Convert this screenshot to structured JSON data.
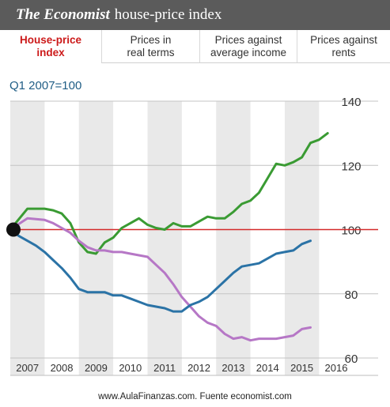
{
  "header": {
    "brand": "The Economist",
    "title_rest": "house-price index"
  },
  "tabs": [
    {
      "label": "House-price\nindex",
      "active": true
    },
    {
      "label": "Prices in\nreal terms",
      "active": false
    },
    {
      "label": "Prices against\naverage income",
      "active": false
    },
    {
      "label": "Prices against\nrents",
      "active": false
    }
  ],
  "footer": {
    "text": "www.AulaFinanzas.com. Fuente economist.com"
  },
  "chart_data": {
    "type": "line",
    "subtitle": "Q1 2007=100",
    "x_ticks": [
      "2007",
      "2008",
      "2009",
      "2010",
      "2011",
      "2012",
      "2013",
      "2014",
      "2015",
      "2016"
    ],
    "xlim": [
      2007.0,
      2016.5
    ],
    "ylim": [
      60,
      140
    ],
    "y_ticks": [
      60,
      80,
      100,
      120,
      140
    ],
    "y_axis_side": "right",
    "grid": true,
    "alternating_year_bands": true,
    "reference_line": {
      "y": 100,
      "color": "#d42a2a"
    },
    "start_marker": {
      "x": 2007.0,
      "y": 100
    },
    "series": [
      {
        "color": "#3a9b33",
        "points": [
          [
            2007.0,
            100
          ],
          [
            2007.5,
            106.5
          ],
          [
            2008.0,
            106.5
          ],
          [
            2008.25,
            106
          ],
          [
            2008.5,
            105
          ],
          [
            2008.75,
            102
          ],
          [
            2009.0,
            96
          ],
          [
            2009.25,
            93
          ],
          [
            2009.5,
            92.5
          ],
          [
            2009.75,
            96
          ],
          [
            2010.0,
            97.5
          ],
          [
            2010.25,
            100.5
          ],
          [
            2010.5,
            102
          ],
          [
            2010.75,
            103.5
          ],
          [
            2011.0,
            101.5
          ],
          [
            2011.25,
            100.5
          ],
          [
            2011.5,
            100
          ],
          [
            2011.75,
            102
          ],
          [
            2012.0,
            101
          ],
          [
            2012.25,
            101
          ],
          [
            2012.5,
            102.5
          ],
          [
            2012.75,
            104
          ],
          [
            2013.0,
            103.5
          ],
          [
            2013.25,
            103.5
          ],
          [
            2013.5,
            105.5
          ],
          [
            2013.75,
            108
          ],
          [
            2014.0,
            109
          ],
          [
            2014.25,
            111.5
          ],
          [
            2014.5,
            116
          ],
          [
            2014.75,
            120.5
          ],
          [
            2015.0,
            120
          ],
          [
            2015.25,
            121
          ],
          [
            2015.5,
            122.5
          ],
          [
            2015.75,
            127
          ],
          [
            2016.0,
            128
          ],
          [
            2016.25,
            130
          ]
        ]
      },
      {
        "color": "#b677c6",
        "points": [
          [
            2007.0,
            100
          ],
          [
            2007.5,
            103.5
          ],
          [
            2008.0,
            103
          ],
          [
            2008.25,
            102
          ],
          [
            2008.5,
            100.5
          ],
          [
            2008.75,
            99
          ],
          [
            2009.0,
            96.5
          ],
          [
            2009.25,
            94.5
          ],
          [
            2009.5,
            93.5
          ],
          [
            2009.75,
            93.5
          ],
          [
            2010.0,
            93
          ],
          [
            2010.25,
            93
          ],
          [
            2010.5,
            92.5
          ],
          [
            2010.75,
            92
          ],
          [
            2011.0,
            91.5
          ],
          [
            2011.25,
            89
          ],
          [
            2011.5,
            86.5
          ],
          [
            2011.75,
            83
          ],
          [
            2012.0,
            79
          ],
          [
            2012.25,
            76
          ],
          [
            2012.5,
            73
          ],
          [
            2012.75,
            71
          ],
          [
            2013.0,
            70
          ],
          [
            2013.25,
            67.5
          ],
          [
            2013.5,
            66
          ],
          [
            2013.75,
            66.5
          ],
          [
            2014.0,
            65.5
          ],
          [
            2014.25,
            66
          ],
          [
            2014.5,
            66
          ],
          [
            2014.75,
            66
          ],
          [
            2015.0,
            66.5
          ],
          [
            2015.25,
            67
          ],
          [
            2015.5,
            69
          ],
          [
            2015.75,
            69.5
          ]
        ]
      },
      {
        "color": "#2b73a6",
        "points": [
          [
            2007.0,
            100
          ],
          [
            2007.25,
            98
          ],
          [
            2007.5,
            96.5
          ],
          [
            2007.75,
            95
          ],
          [
            2008.0,
            93
          ],
          [
            2008.25,
            90.5
          ],
          [
            2008.5,
            88
          ],
          [
            2008.75,
            85
          ],
          [
            2009.0,
            81.5
          ],
          [
            2009.25,
            80.5
          ],
          [
            2009.5,
            80.5
          ],
          [
            2009.75,
            80.5
          ],
          [
            2010.0,
            79.5
          ],
          [
            2010.25,
            79.5
          ],
          [
            2010.5,
            78.5
          ],
          [
            2010.75,
            77.5
          ],
          [
            2011.0,
            76.5
          ],
          [
            2011.25,
            76
          ],
          [
            2011.5,
            75.5
          ],
          [
            2011.75,
            74.5
          ],
          [
            2012.0,
            74.5
          ],
          [
            2012.25,
            76.5
          ],
          [
            2012.5,
            77.5
          ],
          [
            2012.75,
            79
          ],
          [
            2013.0,
            81.5
          ],
          [
            2013.25,
            84
          ],
          [
            2013.5,
            86.5
          ],
          [
            2013.75,
            88.5
          ],
          [
            2014.0,
            89
          ],
          [
            2014.25,
            89.5
          ],
          [
            2014.5,
            91
          ],
          [
            2014.75,
            92.5
          ],
          [
            2015.0,
            93
          ],
          [
            2015.25,
            93.5
          ],
          [
            2015.5,
            95.5
          ],
          [
            2015.75,
            96.5
          ]
        ]
      }
    ]
  }
}
